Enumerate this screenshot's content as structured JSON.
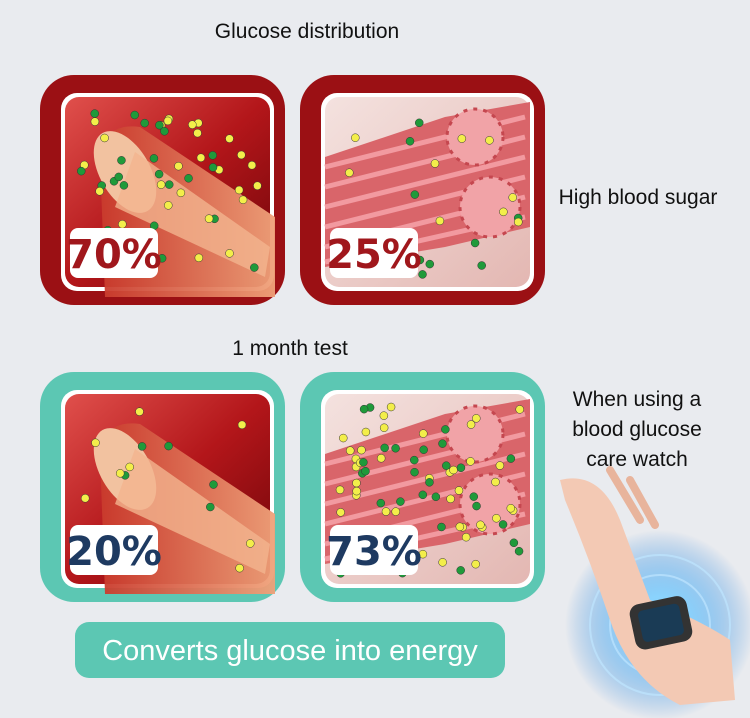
{
  "before": {
    "heading": "Glucose distribution",
    "side_label": "High blood sugar",
    "panels": [
      "70%",
      "25%"
    ]
  },
  "after": {
    "heading": "1 month test",
    "side_label": [
      "When using a",
      "blood glucose",
      "care watch"
    ],
    "panels": [
      "20%",
      "73%"
    ]
  },
  "banner": "Converts glucose into energy"
}
